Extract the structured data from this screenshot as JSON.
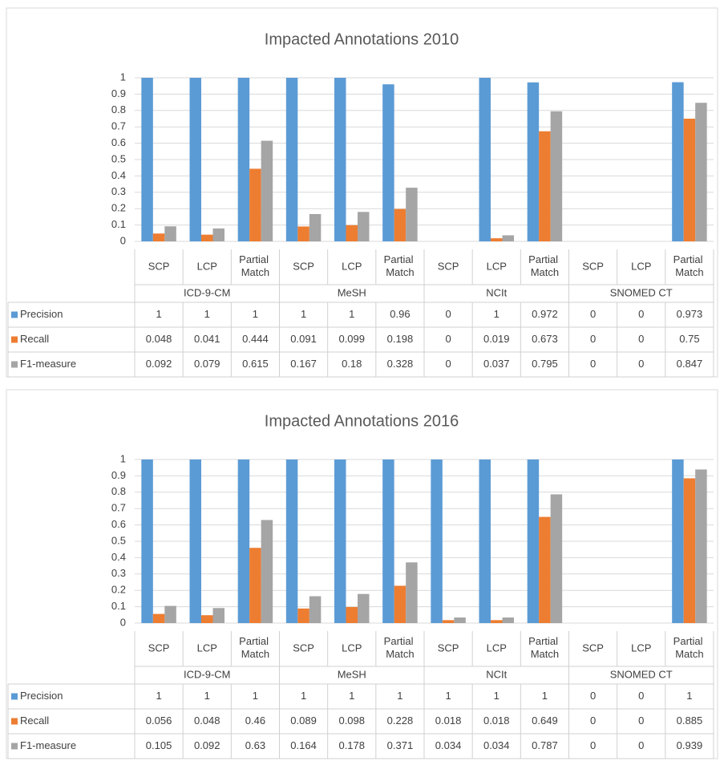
{
  "chart_data": [
    {
      "type": "bar",
      "title": "Impacted Annotations 2010",
      "categories": [
        "SCP",
        "LCP",
        "Partial Match",
        "SCP",
        "LCP",
        "Partial Match",
        "SCP",
        "LCP",
        "Partial Match",
        "SCP",
        "LCP",
        "Partial Match"
      ],
      "groups": [
        "ICD-9-CM",
        "MeSH",
        "NCIt",
        "SNOMED CT"
      ],
      "series": [
        {
          "name": "Precision",
          "color": "#5b9bd5",
          "values": [
            1,
            1,
            1,
            1,
            1,
            0.96,
            0,
            1,
            0.972,
            0,
            0,
            0.973
          ]
        },
        {
          "name": "Recall",
          "color": "#ed7d31",
          "values": [
            0.048,
            0.041,
            0.444,
            0.091,
            0.099,
            0.198,
            0,
            0.019,
            0.673,
            0,
            0,
            0.75
          ]
        },
        {
          "name": "F1-measure",
          "color": "#a5a5a5",
          "values": [
            0.092,
            0.079,
            0.615,
            0.167,
            0.18,
            0.328,
            0,
            0.037,
            0.795,
            0,
            0,
            0.847
          ]
        }
      ],
      "ylim": [
        0,
        1
      ],
      "yticks": [
        0,
        0.1,
        0.2,
        0.3,
        0.4,
        0.5,
        0.6,
        0.7,
        0.8,
        0.9,
        1
      ],
      "grid": true
    },
    {
      "type": "bar",
      "title": "Impacted Annotations 2016",
      "categories": [
        "SCP",
        "LCP",
        "Partial Match",
        "SCP",
        "LCP",
        "Partial Match",
        "SCP",
        "LCP",
        "Partial Match",
        "SCP",
        "LCP",
        "Partial Match"
      ],
      "groups": [
        "ICD-9-CM",
        "MeSH",
        "NCIt",
        "SNOMED CT"
      ],
      "series": [
        {
          "name": "Precision",
          "color": "#5b9bd5",
          "values": [
            1,
            1,
            1,
            1,
            1,
            1,
            1,
            1,
            1,
            0,
            0,
            1
          ]
        },
        {
          "name": "Recall",
          "color": "#ed7d31",
          "values": [
            0.056,
            0.048,
            0.46,
            0.089,
            0.098,
            0.228,
            0.018,
            0.018,
            0.649,
            0,
            0,
            0.885
          ]
        },
        {
          "name": "F1-measure",
          "color": "#a5a5a5",
          "values": [
            0.105,
            0.092,
            0.63,
            0.164,
            0.178,
            0.371,
            0.034,
            0.034,
            0.787,
            0,
            0,
            0.939
          ]
        }
      ],
      "ylim": [
        0,
        1
      ],
      "yticks": [
        0,
        0.1,
        0.2,
        0.3,
        0.4,
        0.5,
        0.6,
        0.7,
        0.8,
        0.9,
        1
      ],
      "grid": true
    }
  ]
}
